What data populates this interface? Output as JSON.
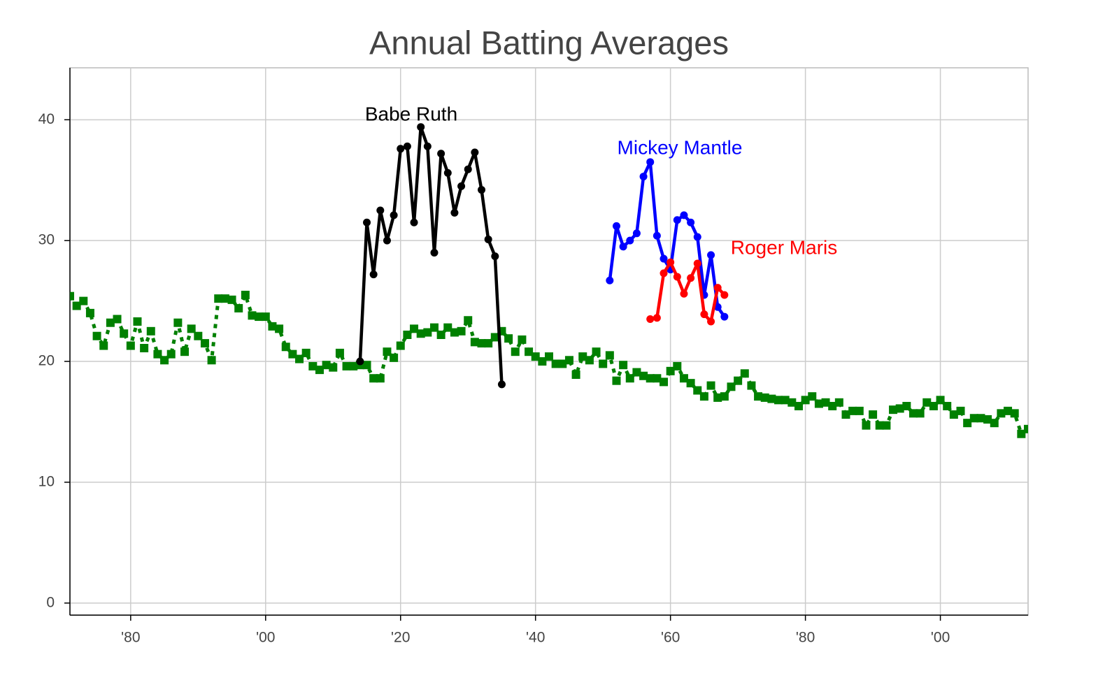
{
  "chart_data": {
    "type": "line",
    "title": "Annual Batting Averages",
    "xlim": [
      1871,
      2013
    ],
    "ylim": [
      -1,
      44.3
    ],
    "xticks": [
      {
        "value": 1880,
        "label": "'80"
      },
      {
        "value": 1900,
        "label": "'00"
      },
      {
        "value": 1920,
        "label": "'20"
      },
      {
        "value": 1940,
        "label": "'40"
      },
      {
        "value": 1960,
        "label": "'60"
      },
      {
        "value": 1980,
        "label": "'80"
      },
      {
        "value": 2000,
        "label": "'00"
      }
    ],
    "yticks": [
      0,
      10,
      20,
      30,
      40
    ],
    "grid": true,
    "series": [
      {
        "color": "#008000",
        "marker": "square",
        "dashed": true,
        "x": [
          1871,
          1872,
          1873,
          1874,
          1875,
          1876,
          1877,
          1878,
          1879,
          1880,
          1881,
          1882,
          1883,
          1884,
          1885,
          1886,
          1887,
          1888,
          1889,
          1890,
          1891,
          1892,
          1893,
          1894,
          1895,
          1896,
          1897,
          1898,
          1899,
          1900,
          1901,
          1902,
          1903,
          1904,
          1905,
          1906,
          1907,
          1908,
          1909,
          1910,
          1911,
          1912,
          1913,
          1914,
          1915,
          1916,
          1917,
          1918,
          1919,
          1920,
          1921,
          1922,
          1923,
          1924,
          1925,
          1926,
          1927,
          1928,
          1929,
          1930,
          1931,
          1932,
          1933,
          1934,
          1935,
          1936,
          1937,
          1938,
          1939,
          1940,
          1941,
          1942,
          1943,
          1944,
          1945,
          1946,
          1947,
          1948,
          1949,
          1950,
          1951,
          1952,
          1953,
          1954,
          1955,
          1956,
          1957,
          1958,
          1959,
          1960,
          1961,
          1962,
          1963,
          1964,
          1965,
          1966,
          1967,
          1968,
          1969,
          1970,
          1971,
          1972,
          1973,
          1974,
          1975,
          1976,
          1977,
          1978,
          1979,
          1980,
          1981,
          1982,
          1983,
          1984,
          1985,
          1986,
          1987,
          1988,
          1989,
          1990,
          1991,
          1992,
          1993,
          1994,
          1995,
          1996,
          1997,
          1998,
          1999,
          2000,
          2001,
          2002,
          2003,
          2004,
          2005,
          2006,
          2007,
          2008,
          2009,
          2010,
          2011,
          2012,
          2013
        ],
        "values": [
          25.4,
          24.6,
          25.0,
          24.0,
          22.1,
          21.3,
          23.2,
          23.5,
          22.3,
          21.3,
          23.3,
          21.1,
          22.5,
          20.6,
          20.1,
          20.6,
          23.2,
          20.8,
          22.7,
          22.1,
          21.5,
          20.1,
          25.2,
          25.2,
          25.1,
          24.4,
          25.5,
          23.8,
          23.7,
          23.7,
          22.9,
          22.7,
          21.2,
          20.6,
          20.2,
          20.7,
          19.6,
          19.3,
          19.7,
          19.5,
          20.7,
          19.6,
          19.6,
          19.7,
          19.7,
          18.6,
          18.6,
          20.8,
          20.3,
          21.3,
          22.2,
          22.7,
          22.3,
          22.4,
          22.8,
          22.2,
          22.8,
          22.4,
          22.5,
          23.4,
          21.6,
          21.5,
          21.5,
          22.0,
          22.5,
          21.9,
          20.8,
          21.8,
          20.8,
          20.4,
          20.0,
          20.4,
          19.8,
          19.8,
          20.1,
          18.9,
          20.4,
          20.1,
          20.8,
          19.8,
          20.5,
          18.4,
          19.7,
          18.6,
          19.1,
          18.8,
          18.6,
          18.6,
          18.3,
          19.2,
          19.6,
          18.6,
          18.2,
          17.6,
          17.1,
          18.0,
          17.0,
          17.1,
          17.9,
          18.4,
          19.0,
          18.0,
          17.1,
          17.0,
          16.9,
          16.8,
          16.8,
          16.6,
          16.3,
          16.8,
          17.1,
          16.5,
          16.6,
          16.3,
          16.6,
          15.6,
          15.9,
          15.9,
          14.7,
          15.6,
          14.7,
          14.7,
          16.0,
          16.1,
          16.3,
          15.7,
          15.7,
          16.6,
          16.3,
          16.8,
          16.3,
          15.6,
          15.9,
          14.9,
          15.3,
          15.3,
          15.2,
          14.9,
          15.7,
          15.9,
          15.7,
          14.0,
          14.4
        ]
      },
      {
        "name": "Babe Ruth",
        "color": "#000000",
        "marker": "circle",
        "dashed": false,
        "x": [
          1914,
          1915,
          1916,
          1917,
          1918,
          1919,
          1920,
          1921,
          1922,
          1923,
          1924,
          1925,
          1926,
          1927,
          1928,
          1929,
          1930,
          1931,
          1932,
          1933,
          1934,
          1935
        ],
        "values": [
          20.0,
          31.5,
          27.2,
          32.5,
          30.0,
          32.1,
          37.6,
          37.8,
          31.5,
          39.4,
          37.8,
          29.0,
          37.2,
          35.6,
          32.3,
          34.5,
          35.9,
          37.3,
          34.2,
          30.1,
          28.7,
          18.1
        ]
      },
      {
        "name": "Mickey Mantle",
        "color": "#0000ff",
        "marker": "circle",
        "dashed": false,
        "x": [
          1951,
          1952,
          1953,
          1954,
          1955,
          1956,
          1957,
          1958,
          1959,
          1960,
          1961,
          1962,
          1963,
          1964,
          1965,
          1966,
          1967,
          1968
        ],
        "values": [
          26.7,
          31.2,
          29.5,
          30.0,
          30.6,
          35.3,
          36.5,
          30.4,
          28.5,
          27.6,
          31.7,
          32.1,
          31.5,
          30.3,
          25.5,
          28.8,
          24.5,
          23.7
        ]
      },
      {
        "name": "Roger Maris",
        "color": "#ff0000",
        "marker": "circle",
        "dashed": false,
        "x": [
          1957,
          1958,
          1959,
          1960,
          1961,
          1962,
          1963,
          1964,
          1965,
          1966,
          1967,
          1968
        ],
        "values": [
          23.5,
          23.6,
          27.3,
          28.2,
          27.0,
          25.6,
          26.9,
          28.1,
          23.9,
          23.3,
          26.1,
          25.5
        ]
      }
    ]
  }
}
